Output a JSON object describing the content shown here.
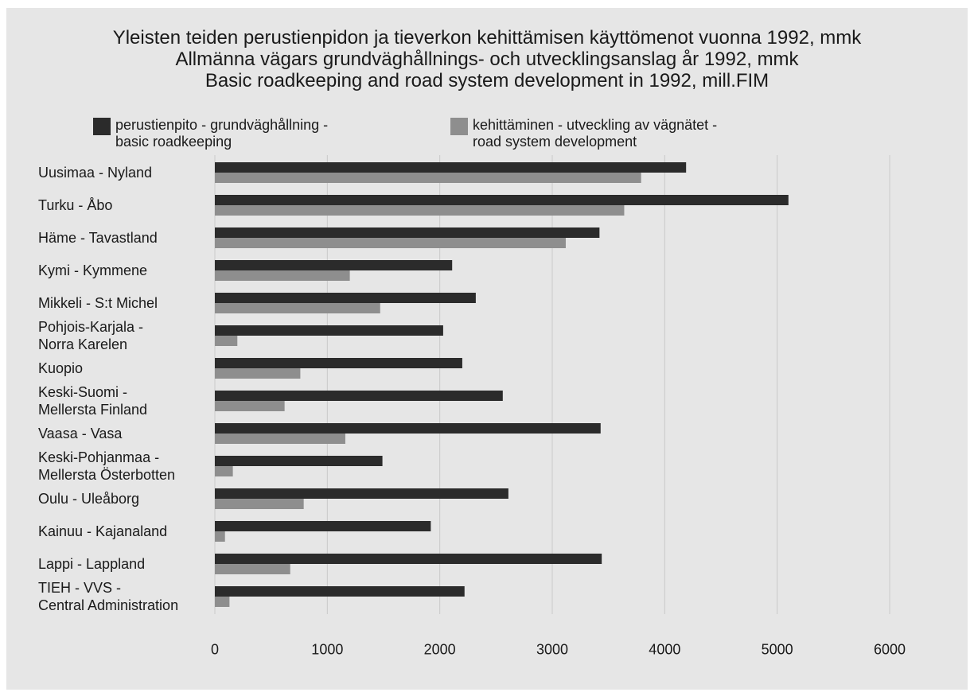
{
  "chart_data": {
    "type": "bar",
    "orientation": "horizontal",
    "title": "Yleisten teiden perustienpidon ja tieverkon kehittämisen käyttömenot vuonna 1992, mmk\nAllmänna vägars grundväghållnings- och utvecklingsanslag år 1992, mmk\nBasic roadkeeping and road system development in 1992, mill.FIM",
    "categories": [
      "Uusimaa - Nyland",
      "Turku - Åbo",
      "Häme - Tavastland",
      "Kymi - Kymmene",
      "Mikkeli - S:t Michel",
      "Pohjois-Karjala -\nNorra Karelen",
      "Kuopio",
      "Keski-Suomi -\nMellersta Finland",
      "Vaasa - Vasa",
      "Keski-Pohjanmaa -\nMellersta Österbotten",
      "Oulu - Uleåborg",
      "Kainuu - Kajanaland",
      "Lappi - Lappland",
      "TIEH - VVS -\nCentral Administration"
    ],
    "series": [
      {
        "name": "perustienpito - grundväghållning -\nbasic roadkeeping",
        "color": "#2b2b2b",
        "values": [
          4190,
          5100,
          3420,
          2110,
          2320,
          2030,
          2200,
          2560,
          3430,
          1490,
          2610,
          1920,
          3440,
          2220
        ]
      },
      {
        "name": "kehittäminen - utveckling av vägnätet -\nroad system development",
        "color": "#8e8e8e",
        "values": [
          3790,
          3640,
          3120,
          1200,
          1470,
          200,
          760,
          620,
          1160,
          160,
          790,
          90,
          670,
          130
        ]
      }
    ],
    "xlim": [
      0,
      6000
    ],
    "xticks": [
      0,
      1000,
      2000,
      3000,
      4000,
      5000,
      6000
    ],
    "grid": true
  }
}
